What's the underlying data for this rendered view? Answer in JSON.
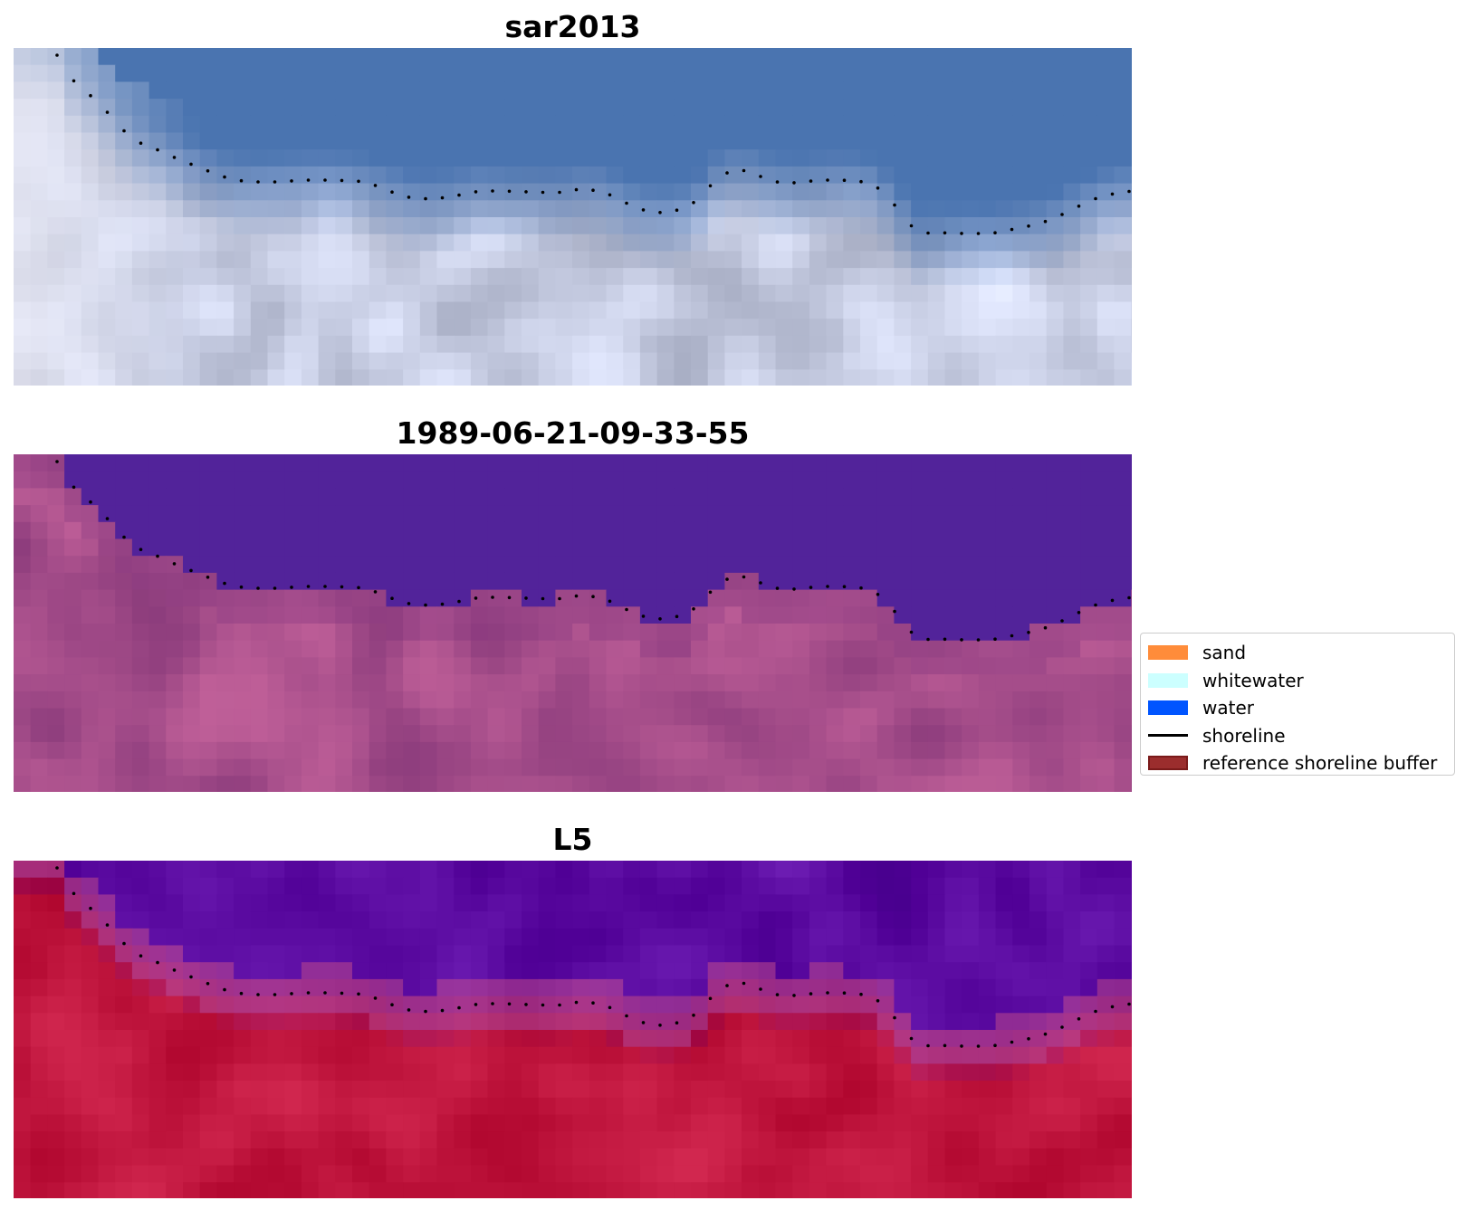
{
  "panels": [
    {
      "title": "sar2013",
      "render": "rgb",
      "water_color": "#4a74b0",
      "land_color": "#c7cde3"
    },
    {
      "title": "1989-06-21-09-33-55",
      "render": "classified",
      "water_color": "#52239a",
      "land_color": "#9c4a88"
    },
    {
      "title": "L5",
      "render": "index",
      "water_color": "#5a0aa0",
      "land_color": "#c0163e"
    }
  ],
  "legend": {
    "items": [
      {
        "label": "sand",
        "color": "#ff8c3a",
        "kind": "patch"
      },
      {
        "label": "whitewater",
        "color": "#ccffff",
        "kind": "patch"
      },
      {
        "label": "water",
        "color": "#0055ff",
        "kind": "patch"
      },
      {
        "label": "shoreline",
        "color": "#000000",
        "kind": "line"
      },
      {
        "label": "reference shoreline buffer",
        "color": "#9b2d2d",
        "kind": "patch"
      }
    ]
  }
}
